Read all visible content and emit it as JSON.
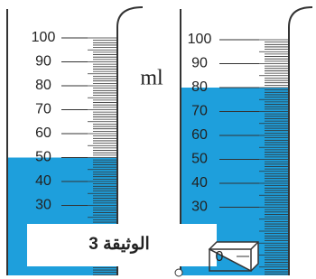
{
  "unit": "ml",
  "caption": "الوثيقة 3",
  "left_cylinder": {
    "scale": [
      100,
      90,
      80,
      70,
      60,
      50,
      40,
      30
    ],
    "level": 50
  },
  "right_cylinder": {
    "scale": [
      100,
      90,
      80,
      70,
      60,
      50,
      40,
      30
    ],
    "level": 80
  },
  "cube_label": "0"
}
